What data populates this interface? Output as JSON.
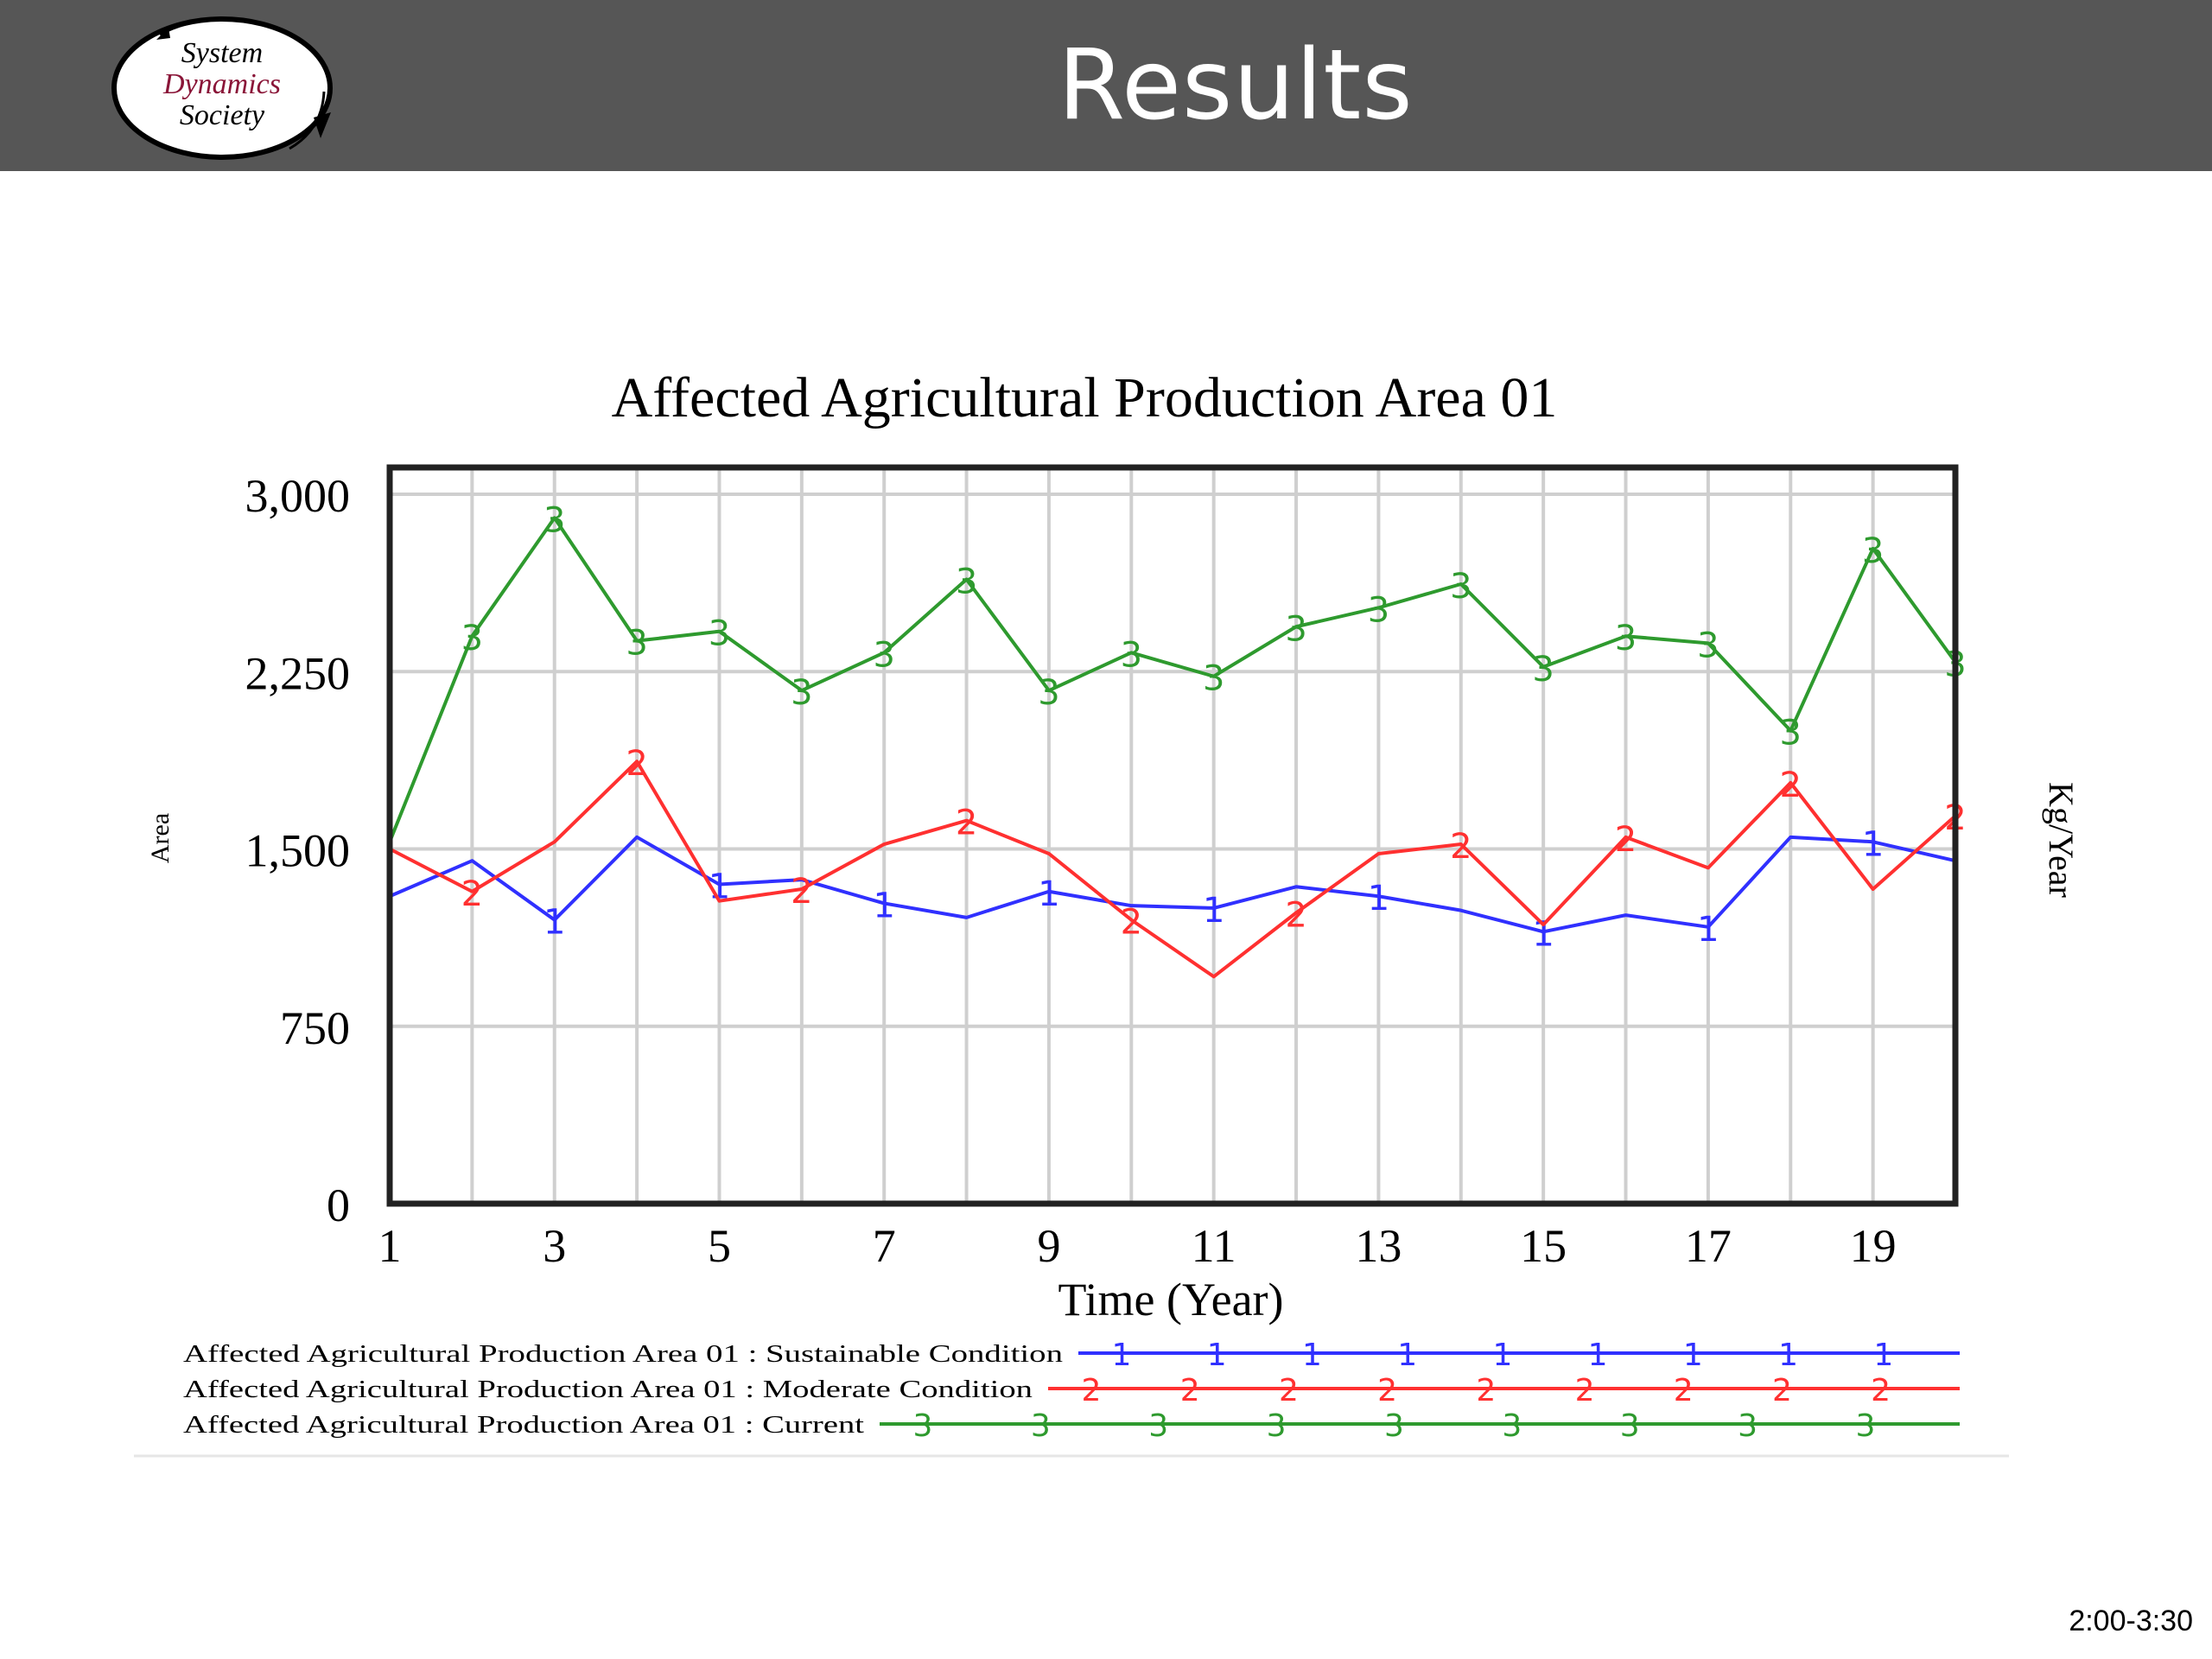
{
  "slide": {
    "title": "Results",
    "timer": "2:00-3:30"
  },
  "logo": {
    "line1": "System",
    "line2": "Dynamics",
    "line3": "Society"
  },
  "colors": {
    "header": "#565656",
    "series1": "#3030ff",
    "series2": "#ff3030",
    "series3": "#2e9a2e"
  },
  "chart_data": {
    "type": "line",
    "title": "Affected Agricultural Production Area 01",
    "xlabel": "Time (Year)",
    "ylabel": "Area",
    "ylabel_right": "Kg/Year",
    "xlim": [
      1,
      20
    ],
    "ylim": [
      0,
      3000
    ],
    "x": [
      1,
      2,
      3,
      4,
      5,
      6,
      7,
      8,
      9,
      10,
      11,
      12,
      13,
      14,
      15,
      16,
      17,
      18,
      19,
      20
    ],
    "xticks": [
      "1",
      "3",
      "5",
      "7",
      "9",
      "11",
      "13",
      "15",
      "17",
      "19"
    ],
    "yticks": [
      "0",
      "750",
      "1,500",
      "2,250",
      "3,000"
    ],
    "grid": true,
    "series": [
      {
        "name": "Affected Agricultural Production Area 01 : Sustainable Condition",
        "marker": "1",
        "values": [
          1300,
          1450,
          1200,
          1550,
          1350,
          1370,
          1270,
          1210,
          1320,
          1260,
          1250,
          1340,
          1300,
          1240,
          1150,
          1220,
          1170,
          1550,
          1530,
          1450
        ]
      },
      {
        "name": "Affected Agricultural Production Area 01 : Moderate Condition",
        "marker": "2",
        "values": [
          1500,
          1320,
          1530,
          1870,
          1280,
          1330,
          1520,
          1620,
          1480,
          1200,
          960,
          1230,
          1480,
          1520,
          1180,
          1550,
          1420,
          1780,
          1330,
          1640
        ]
      },
      {
        "name": "Affected Agricultural Production Area 01 : Current",
        "marker": "3",
        "values": [
          1530,
          2400,
          2900,
          2380,
          2420,
          2170,
          2330,
          2640,
          2170,
          2330,
          2230,
          2440,
          2520,
          2620,
          2270,
          2400,
          2370,
          2000,
          2770,
          2290
        ]
      }
    ]
  }
}
